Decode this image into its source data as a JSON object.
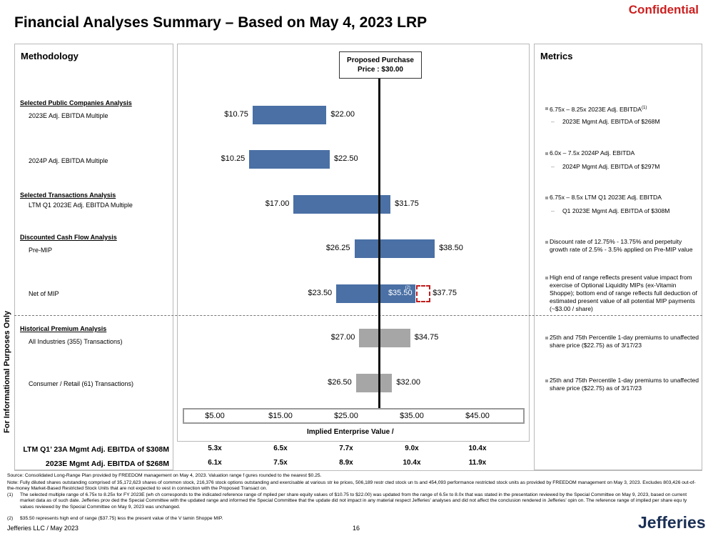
{
  "header": {
    "title": "Financial Analyses Summary – Based on May 4, 2023 LRP",
    "confidential": "Confidential"
  },
  "side_label": "For Informational Purposes Only",
  "methodology": {
    "title": "Methodology",
    "sections": [
      {
        "heading": "Selected Public Companies Analysis"
      },
      {
        "heading": "Selected Transactions Analysis"
      },
      {
        "heading": "Discounted Cash Flow Analysis"
      },
      {
        "heading": "Historical Premium Analysis"
      }
    ],
    "rows": [
      "2023E Adj. EBITDA Multiple",
      "2024P Adj. EBITDA Multiple",
      "LTM Q1 2023E Adj. EBITDA Multiple",
      "Pre-MIP",
      "Net of MIP",
      "All Industries (355) Transactions)",
      "Consumer / Retail (61) Transactions)"
    ]
  },
  "proposed": {
    "line1": "Proposed Purchase",
    "line2": "Price : $30.00",
    "value": 30.0
  },
  "chart_data": {
    "type": "bar",
    "subtype": "football-field range bars",
    "x_axis": {
      "label": "Implied Enterprise Value /",
      "range": [
        5.0,
        45.0
      ],
      "ticks": [
        "$5.00",
        "$15.00",
        "$25.00",
        "$35.00",
        "$45.00"
      ],
      "tick_values": [
        5,
        15,
        25,
        35,
        45
      ]
    },
    "reference_line": {
      "label": "Proposed Purchase Price : $30.00",
      "value": 30.0
    },
    "bars": [
      {
        "name": "2023E Adj. EBITDA Multiple",
        "low": 10.75,
        "high": 22.0,
        "low_label": "$10.75",
        "high_label": "$22.00",
        "color": "#4a70a5"
      },
      {
        "name": "2024P Adj. EBITDA Multiple",
        "low": 10.25,
        "high": 22.5,
        "low_label": "$10.25",
        "high_label": "$22.50",
        "color": "#4a70a5"
      },
      {
        "name": "LTM Q1 2023E Adj. EBITDA Multiple",
        "low": 17.0,
        "high": 31.75,
        "low_label": "$17.00",
        "high_label": "$31.75",
        "color": "#4a70a5"
      },
      {
        "name": "Pre-MIP",
        "low": 26.25,
        "high": 38.5,
        "low_label": "$26.25",
        "high_label": "$38.50",
        "color": "#4a70a5"
      },
      {
        "name": "Net of MIP",
        "low": 23.5,
        "high": 35.5,
        "low_label": "$23.50",
        "high_label": "$37.75",
        "extended_high": 37.75,
        "inner_label": "$35.50",
        "inner_note": "(2)",
        "color": "#4a70a5"
      },
      {
        "name": "All Industries (355) Transactions)",
        "low": 27.0,
        "high": 34.75,
        "low_label": "$27.00",
        "high_label": "$34.75",
        "color": "#a6a6a6"
      },
      {
        "name": "Consumer / Retail (61) Transactions)",
        "low": 26.5,
        "high": 32.0,
        "low_label": "$26.50",
        "high_label": "$32.00",
        "color": "#a6a6a6"
      }
    ]
  },
  "multiples": {
    "rows": [
      {
        "label": "LTM Q1’ 23A Mgmt Adj. EBITDA of $308M",
        "values": [
          "5.3x",
          "6.5x",
          "7.7x",
          "9.0x",
          "10.4x"
        ]
      },
      {
        "label": "2023E Mgmt Adj. EBITDA of $268M",
        "values": [
          "6.1x",
          "7.5x",
          "8.9x",
          "10.4x",
          "11.9x"
        ]
      }
    ]
  },
  "metrics": {
    "title": "Metrics",
    "items": [
      {
        "text": "6.75x – 8.25x 2023E Adj. EBITDA",
        "note": "(1)",
        "sub": "2023E Mgmt Adj. EBITDA of $268M"
      },
      {
        "text": "6.0x – 7.5x 2024P Adj. EBITDA",
        "sub": "2024P Mgmt Adj. EBITDA of $297M"
      },
      {
        "text": "6.75x – 8.5x LTM Q1 2023E Adj. EBITDA",
        "sub": "Q1 2023E Mgmt Adj. EBITDA of $308M"
      },
      {
        "text": "Discount rate of 12.75% - 13.75% and perpetuity growth rate of 2.5% - 3.5% applied on Pre-MIP value"
      },
      {
        "text": "High end of range reflects present value impact from exercise of Optional Liquidity MIPs (ex-Vitamin Shoppe); bottom end of range reflects full deduction of estimated present value of all potential MIP payments (~$3.00 / share)"
      },
      {
        "text": "25th and 75th Percentile 1-day premiums to unaffected share price ($22.75) as of 3/17/23"
      },
      {
        "text": "25th and 75th Percentile 1-day premiums to unaffected share price ($22.75) as of 3/17/23"
      }
    ]
  },
  "notes": {
    "source": "Source: Consolidated Long-Range Plan provided by FREEDOM management on May 4, 2023. Valuation range f gures rounded to the nearest $0.25.",
    "note": "Note: Fully diluted shares outstanding comprised of 35,172,623 shares of common stock, 216,376 stock options outstanding and exercisable at various str ke prices, 506,189 restr cted stock un ts and 454,093 performance restricted stock units as provided by FREEDOM management on May 3, 2023. Excludes 803,426 out-of-the-money Market-Based Restricted Stock Units that are not expected to vest in connection with the Proposed Transact on.",
    "fn1_num": "(1)",
    "fn1": "The selected multiple range of 6.75x to 8.25x for FY 2023E (wh ch corresponds to the indicated reference range of mplied per share equity values of $10.75 to $22.00) was updated from the range of 6.5x to 8.0x that was stated in the presentation reviewed by the Special Committee on May 9, 2023, based on current market data as of such date. Jefferies prov ded the Special Committee with the updated range and informed the Special Committee that the update did not impact in any material respect Jefferies' analyses and did not affect the conclusion rendered in Jefferies' opin on. The reference range of implied per share equ ty values reviewed by the Special Committee on May 9, 2023 was unchanged.",
    "fn2_num": "(2)",
    "fn2": "$35.50 represents high end of range ($37.75) less the present value of the V tamin Shoppe MIP."
  },
  "footer": {
    "left": "Jefferies LLC  /  May 2023",
    "page": "16",
    "logo": "Jefferies"
  }
}
